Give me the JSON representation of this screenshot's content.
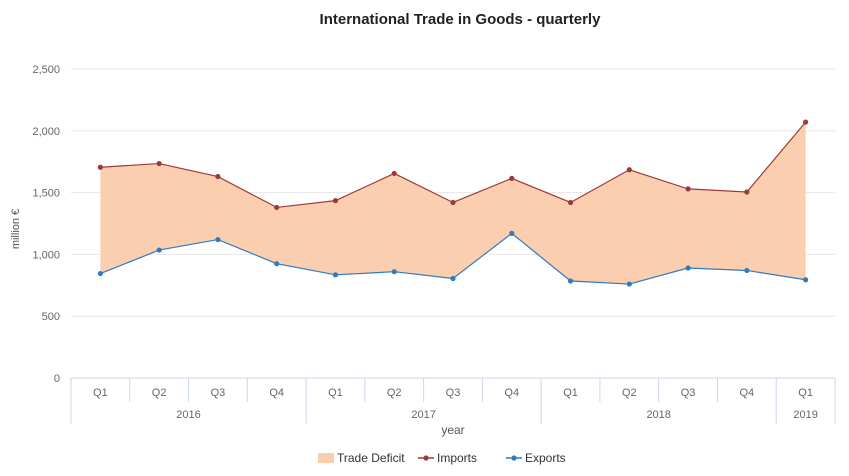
{
  "chart_data": {
    "type": "area",
    "title": "International Trade in Goods - quarterly",
    "xlabel": "year",
    "ylabel": "million €",
    "ylim": [
      0,
      2500
    ],
    "yticks": [
      0,
      500,
      1000,
      1500,
      2000,
      2500
    ],
    "ytick_labels": [
      "0",
      "500",
      "1,000",
      "1,500",
      "2,000",
      "2,500"
    ],
    "grid": true,
    "legend_position": "bottom",
    "categories": [
      "Q1",
      "Q2",
      "Q3",
      "Q4",
      "Q1",
      "Q2",
      "Q3",
      "Q4",
      "Q1",
      "Q2",
      "Q3",
      "Q4",
      "Q1"
    ],
    "year_groups": [
      {
        "label": "2016",
        "count": 4
      },
      {
        "label": "2017",
        "count": 4
      },
      {
        "label": "2018",
        "count": 4
      },
      {
        "label": "2019",
        "count": 1
      }
    ],
    "series": [
      {
        "name": "Imports",
        "color": "#9e3a3a",
        "values": [
          1705,
          1735,
          1630,
          1380,
          1435,
          1655,
          1420,
          1615,
          1420,
          1685,
          1530,
          1505,
          2070
        ]
      },
      {
        "name": "Exports",
        "color": "#2f7bbf",
        "values": [
          845,
          1035,
          1120,
          925,
          835,
          860,
          805,
          1170,
          785,
          760,
          890,
          870,
          795
        ]
      }
    ],
    "area": {
      "name": "Trade Deficit",
      "color": "#fcceb0",
      "between": [
        "Imports",
        "Exports"
      ]
    }
  }
}
